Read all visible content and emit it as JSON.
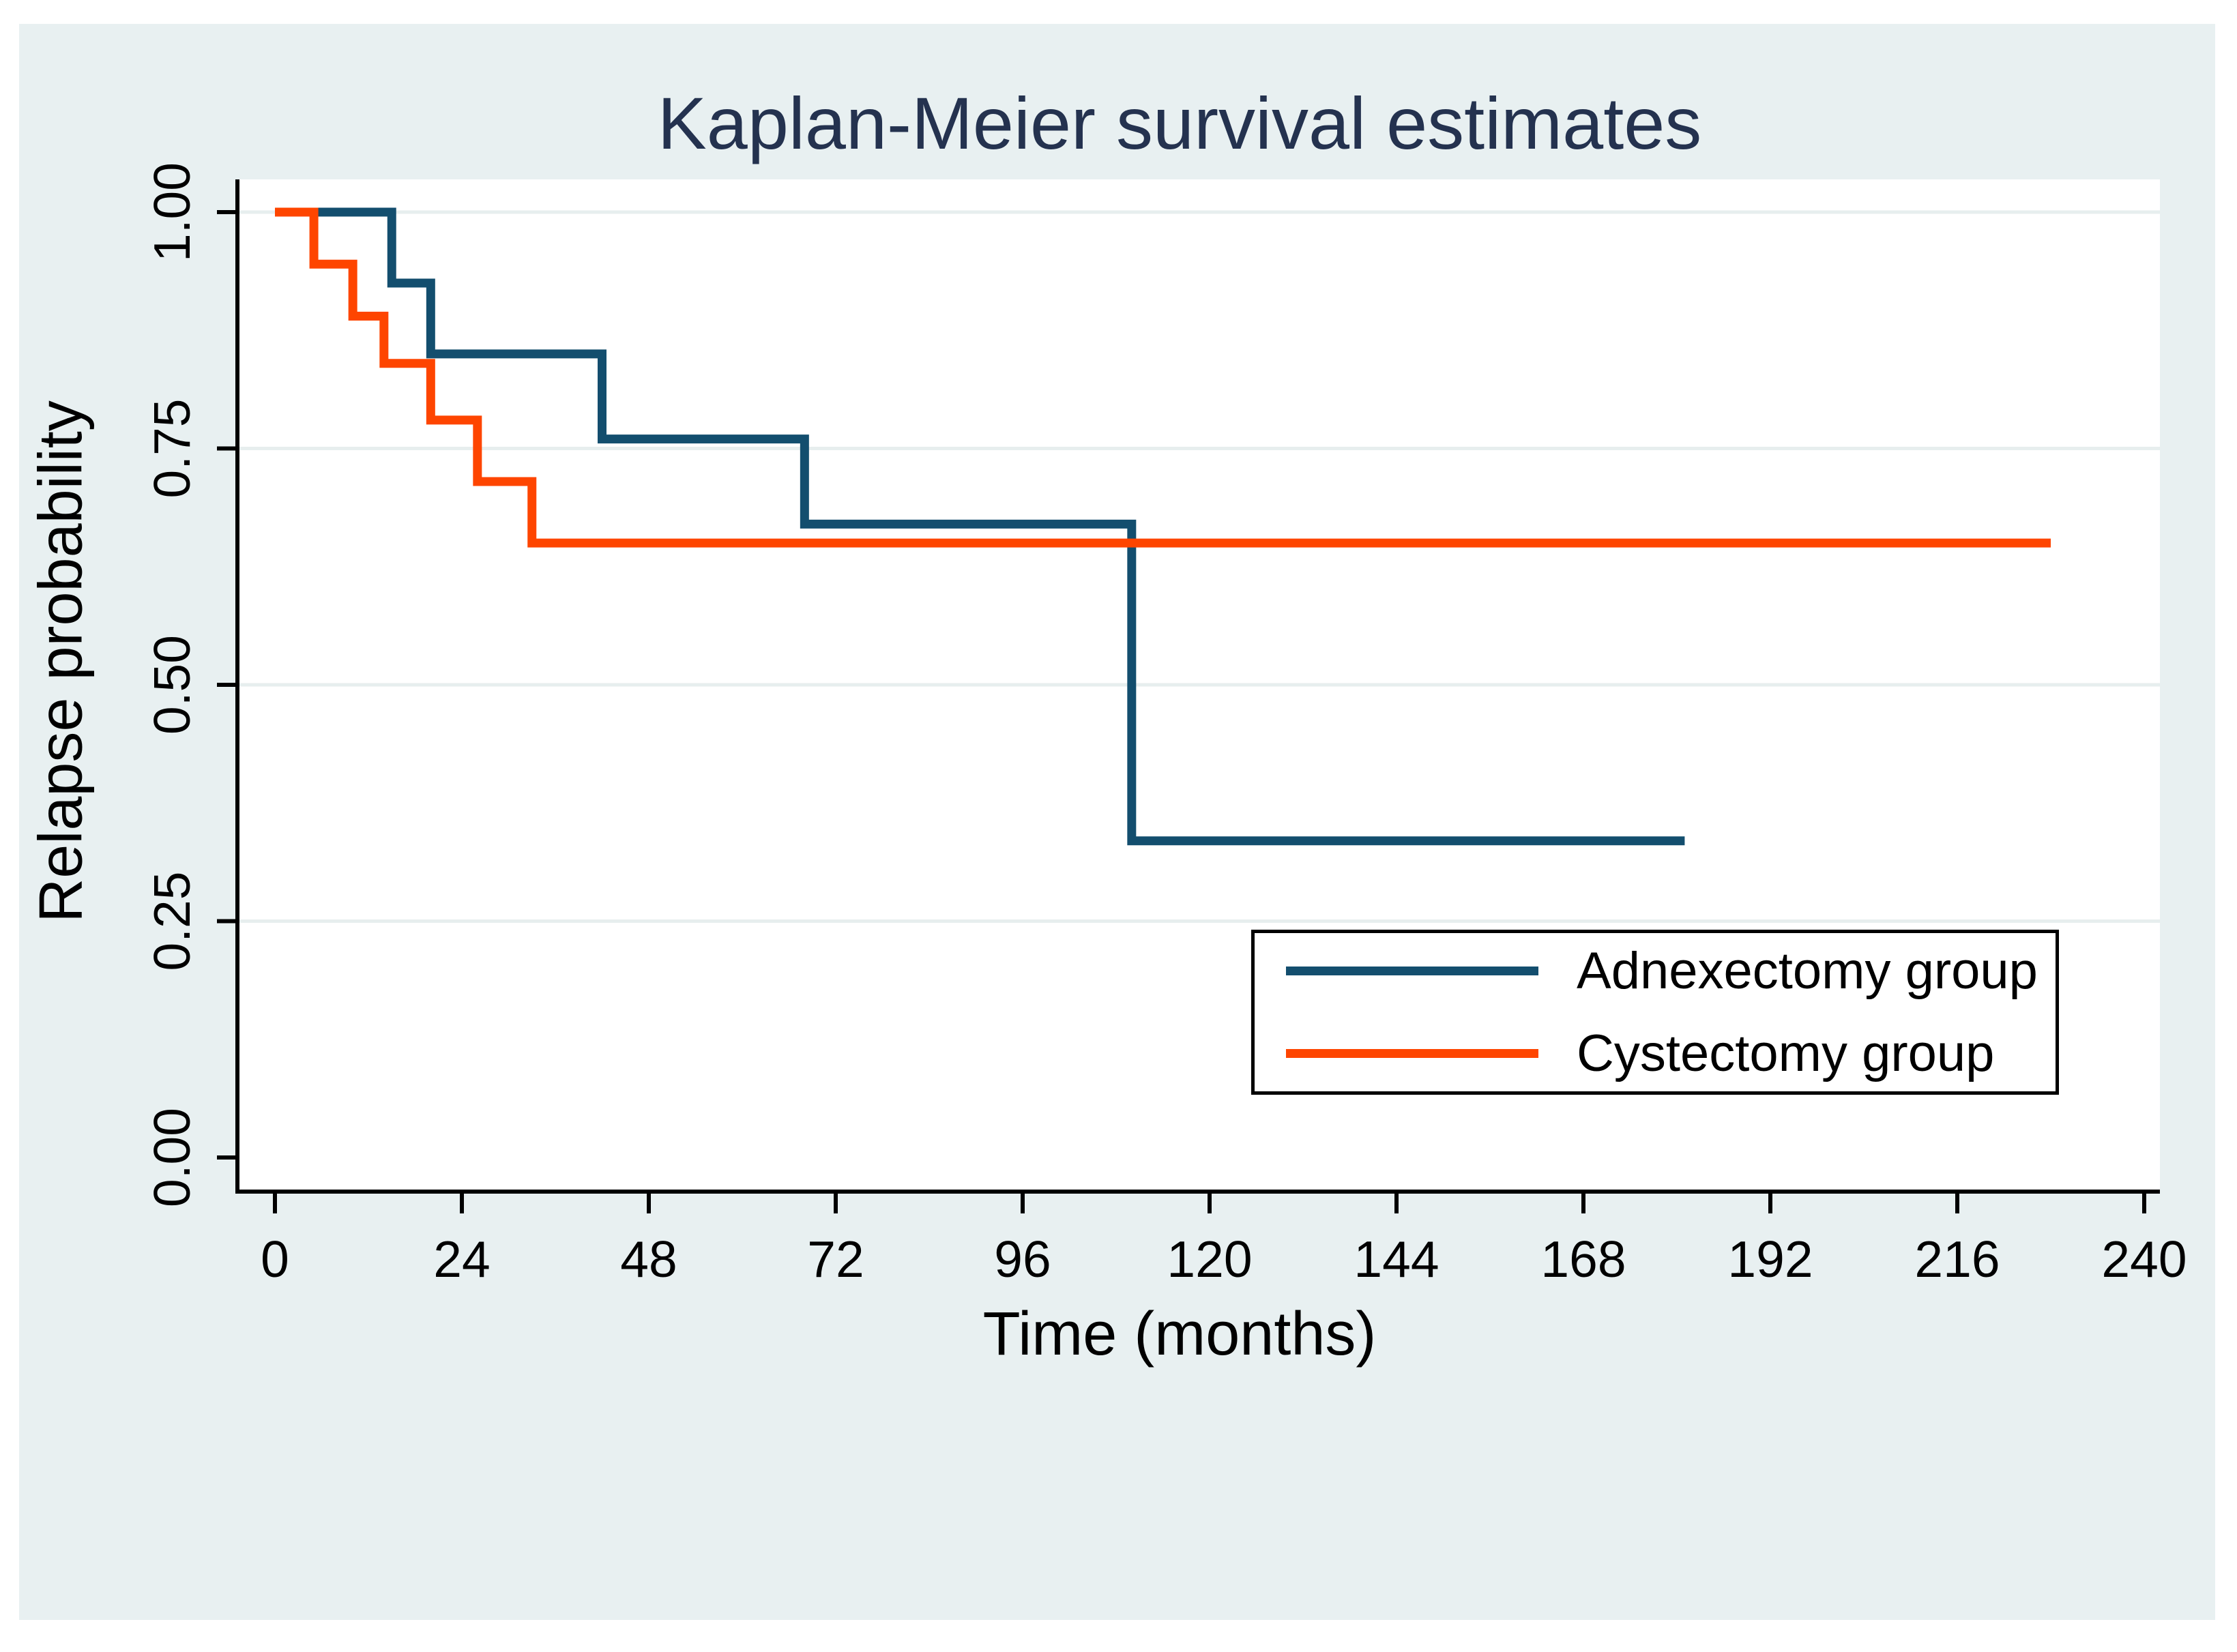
{
  "colors": {
    "background_canvas": "#e8f0f1",
    "plot_background": "#ffffff",
    "gridline": "#e7eeee",
    "axis": "#000000",
    "title_text": "#24324f",
    "adnexectomy_line": "#134e6e",
    "cystectomy_line": "#fe4500",
    "legend_border": "#000000"
  },
  "chart_data": {
    "type": "line",
    "subtype": "kaplan-meier-step",
    "title": "Kaplan-Meier survival estimates",
    "xlabel": "Time (months)",
    "ylabel": "Relapse probability",
    "xlim": [
      0,
      240
    ],
    "ylim": [
      0.0,
      1.0
    ],
    "xticks": [
      0,
      24,
      48,
      72,
      96,
      120,
      144,
      168,
      192,
      216,
      240
    ],
    "ytick_labels": [
      "0.00",
      "0.25",
      "0.50",
      "0.75",
      "1.00"
    ],
    "ytick_values": [
      0.0,
      0.25,
      0.5,
      0.75,
      1.0
    ],
    "grid": "horizontal-only",
    "legend_position": "inside-lower-right",
    "series": [
      {
        "name": "Adnexectomy group",
        "color": "#134e6e",
        "step_times": [
          0,
          15,
          20,
          42,
          68,
          110,
          181
        ],
        "survival": [
          1.0,
          0.925,
          0.85,
          0.76,
          0.67,
          0.335
        ],
        "note": "survival[i] holds from step_times[i] to step_times[i+1]; curve ends at t=181"
      },
      {
        "name": "Cystectomy group",
        "color": "#fe4500",
        "step_times": [
          0,
          5,
          10,
          14,
          20,
          26,
          33,
          228
        ],
        "survival": [
          1.0,
          0.945,
          0.89,
          0.84,
          0.78,
          0.715,
          0.65
        ],
        "note": "survival[i] holds from step_times[i] to step_times[i+1]; curve ends at t=228"
      }
    ]
  },
  "legend": {
    "entries": [
      {
        "label": "Adnexectomy group"
      },
      {
        "label": "Cystectomy group"
      }
    ]
  }
}
